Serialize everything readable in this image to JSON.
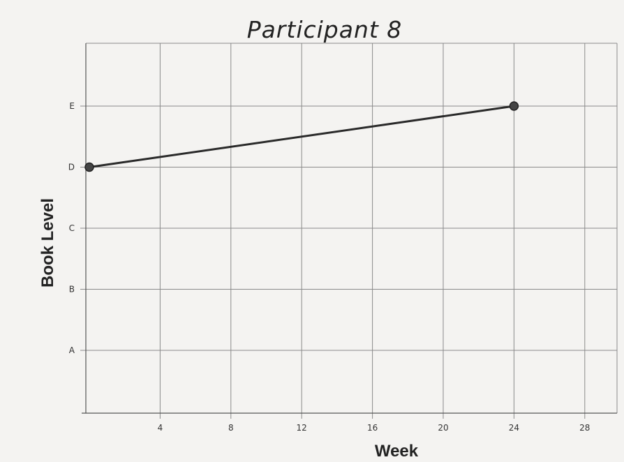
{
  "chart_data": {
    "type": "line",
    "title": "Participant 8",
    "xlabel": "Week",
    "ylabel": "Book Level",
    "x_ticks": [
      4,
      8,
      12,
      16,
      20,
      24,
      28
    ],
    "xlim": [
      0,
      30
    ],
    "y_categories": [
      "A",
      "B",
      "C",
      "D",
      "E"
    ],
    "grid": true,
    "series": [
      {
        "points": [
          {
            "x": 0,
            "y": "D"
          },
          {
            "x": 24,
            "y": "E"
          }
        ]
      }
    ],
    "colors": {
      "line": "#2a2a2a",
      "marker": "#444444",
      "grid": "#8a8a8a"
    }
  }
}
